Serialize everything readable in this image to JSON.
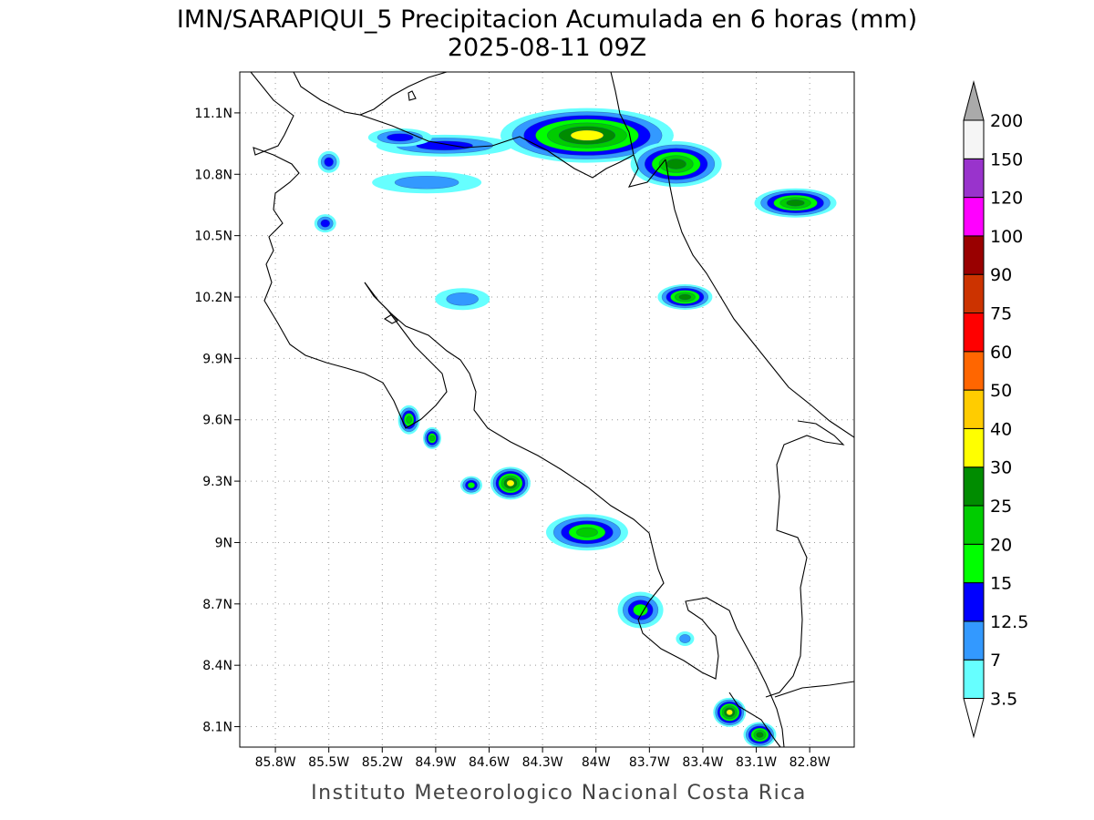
{
  "title": {
    "line1": "IMN/SARAPIQUI_5 Precipitacion Acumulada en 6 horas (mm)",
    "line2": "2025-08-11 09Z"
  },
  "credit": "Instituto Meteorologico Nacional Costa Rica",
  "map": {
    "lon_range": [
      -86.0,
      -82.55
    ],
    "lat_range": [
      8.0,
      11.3
    ],
    "lon_ticks": [
      {
        "value": -85.8,
        "label": "85.8W"
      },
      {
        "value": -85.5,
        "label": "85.5W"
      },
      {
        "value": -85.2,
        "label": "85.2W"
      },
      {
        "value": -84.9,
        "label": "84.9W"
      },
      {
        "value": -84.6,
        "label": "84.6W"
      },
      {
        "value": -84.3,
        "label": "84.3W"
      },
      {
        "value": -84.0,
        "label": "84W"
      },
      {
        "value": -83.7,
        "label": "83.7W"
      },
      {
        "value": -83.4,
        "label": "83.4W"
      },
      {
        "value": -83.1,
        "label": "83.1W"
      },
      {
        "value": -82.8,
        "label": "82.8W"
      }
    ],
    "lat_ticks": [
      {
        "value": 11.1,
        "label": "11.1N"
      },
      {
        "value": 10.8,
        "label": "10.8N"
      },
      {
        "value": 10.5,
        "label": "10.5N"
      },
      {
        "value": 10.2,
        "label": "10.2N"
      },
      {
        "value": 9.9,
        "label": "9.9N"
      },
      {
        "value": 9.6,
        "label": "9.6N"
      },
      {
        "value": 9.3,
        "label": "9.3N"
      },
      {
        "value": 9.0,
        "label": "9N"
      },
      {
        "value": 8.7,
        "label": "8.7N"
      },
      {
        "value": 8.4,
        "label": "8.4N"
      },
      {
        "value": 8.1,
        "label": "8.1N"
      }
    ],
    "grid": true
  },
  "colorbar": {
    "levels": [
      {
        "label": "3.5",
        "color": "#66ffff"
      },
      {
        "label": "7",
        "color": "#3399ff"
      },
      {
        "label": "12.5",
        "color": "#0000ff"
      },
      {
        "label": "15",
        "color": "#00ff00"
      },
      {
        "label": "20",
        "color": "#00cc00"
      },
      {
        "label": "25",
        "color": "#008c00"
      },
      {
        "label": "30",
        "color": "#ffff00"
      },
      {
        "label": "40",
        "color": "#ffcc00"
      },
      {
        "label": "50",
        "color": "#ff6600"
      },
      {
        "label": "60",
        "color": "#ff0000"
      },
      {
        "label": "75",
        "color": "#cc3300"
      },
      {
        "label": "90",
        "color": "#990000"
      },
      {
        "label": "100",
        "color": "#ff00ff"
      },
      {
        "label": "120",
        "color": "#9933cc"
      },
      {
        "label": "150",
        "color": "#f5f5f5"
      },
      {
        "label": "200",
        "color": "#aaaaaa"
      }
    ]
  },
  "precip_cells": [
    {
      "lon": -84.05,
      "lat": 10.99,
      "rx": 95,
      "ry": 30,
      "max_mm": 35
    },
    {
      "lon": -83.55,
      "lat": 10.85,
      "rx": 50,
      "ry": 25,
      "max_mm": 25
    },
    {
      "lon": -84.85,
      "lat": 10.94,
      "rx": 75,
      "ry": 12,
      "max_mm": 12.5
    },
    {
      "lon": -85.1,
      "lat": 10.98,
      "rx": 35,
      "ry": 10,
      "max_mm": 12.5
    },
    {
      "lon": -84.95,
      "lat": 10.76,
      "rx": 60,
      "ry": 12,
      "max_mm": 7
    },
    {
      "lon": -85.5,
      "lat": 10.86,
      "rx": 12,
      "ry": 12,
      "max_mm": 12.5
    },
    {
      "lon": -85.52,
      "lat": 10.56,
      "rx": 12,
      "ry": 10,
      "max_mm": 12.5
    },
    {
      "lon": -82.88,
      "lat": 10.66,
      "rx": 45,
      "ry": 16,
      "max_mm": 25
    },
    {
      "lon": -83.5,
      "lat": 10.2,
      "rx": 30,
      "ry": 14,
      "max_mm": 25
    },
    {
      "lon": -84.75,
      "lat": 10.19,
      "rx": 30,
      "ry": 12,
      "max_mm": 7
    },
    {
      "lon": -85.05,
      "lat": 9.6,
      "rx": 12,
      "ry": 16,
      "max_mm": 20
    },
    {
      "lon": -84.92,
      "lat": 9.51,
      "rx": 10,
      "ry": 12,
      "max_mm": 20
    },
    {
      "lon": -84.48,
      "lat": 9.29,
      "rx": 22,
      "ry": 18,
      "max_mm": 35
    },
    {
      "lon": -84.7,
      "lat": 9.28,
      "rx": 12,
      "ry": 10,
      "max_mm": 15
    },
    {
      "lon": -84.05,
      "lat": 9.05,
      "rx": 45,
      "ry": 20,
      "max_mm": 20
    },
    {
      "lon": -83.75,
      "lat": 8.67,
      "rx": 25,
      "ry": 20,
      "max_mm": 15
    },
    {
      "lon": -83.5,
      "lat": 8.53,
      "rx": 10,
      "ry": 8,
      "max_mm": 7
    },
    {
      "lon": -83.25,
      "lat": 8.17,
      "rx": 18,
      "ry": 16,
      "max_mm": 35
    },
    {
      "lon": -83.08,
      "lat": 8.06,
      "rx": 18,
      "ry": 14,
      "max_mm": 25
    }
  ]
}
